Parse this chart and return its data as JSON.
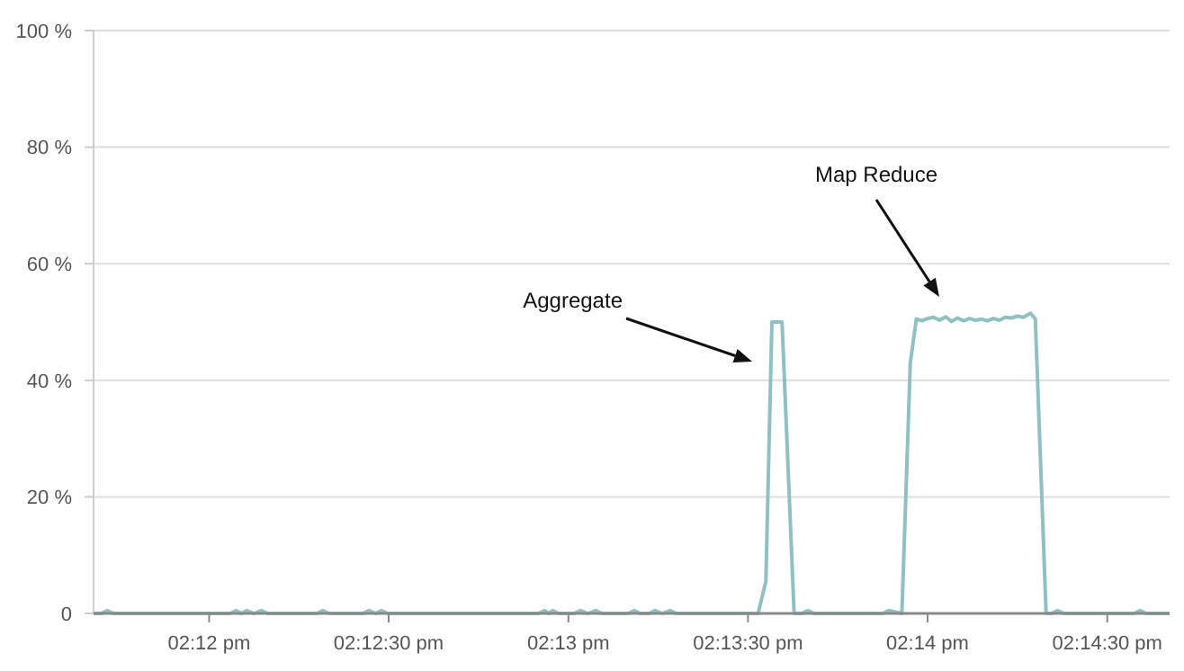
{
  "chart_data": {
    "type": "line",
    "x": [
      14.19464,
      14.195,
      14.19528,
      14.19556,
      14.20097,
      14.20125,
      14.2015,
      14.20175,
      14.20208,
      14.20242,
      14.20272,
      14.205,
      14.20528,
      14.20556,
      14.20714,
      14.20742,
      14.20772,
      14.208,
      14.20828,
      14.21528,
      14.21556,
      14.21575,
      14.21594,
      14.21622,
      14.21694,
      14.21722,
      14.21758,
      14.21794,
      14.21822,
      14.21944,
      14.21972,
      14.22,
      14.22042,
      14.22069,
      14.22103,
      14.22139,
      14.22167,
      14.22547,
      14.22583,
      14.22611,
      14.22658,
      14.22714,
      14.2275,
      14.22778,
      14.22806,
      14.23125,
      14.23153,
      14.23214,
      14.23253,
      14.23281,
      14.23306,
      14.23333,
      14.23361,
      14.23389,
      14.23417,
      14.23444,
      14.23472,
      14.235,
      14.23528,
      14.23556,
      14.23583,
      14.23611,
      14.23639,
      14.23667,
      14.23694,
      14.23722,
      14.2375,
      14.23778,
      14.23811,
      14.23833,
      14.23883,
      14.23908,
      14.23936,
      14.23964,
      14.24292,
      14.24319,
      14.24347,
      14.24456
    ],
    "series": [
      {
        "color": "#8fc1c2",
        "values": [
          0,
          0,
          0.5,
          0,
          0,
          0.5,
          0,
          0.5,
          0,
          0.5,
          0,
          0,
          0.5,
          0,
          0,
          0.5,
          0,
          0.5,
          0,
          0,
          0.5,
          0,
          0.5,
          0,
          0,
          0.5,
          0,
          0.5,
          0,
          0,
          0.5,
          0,
          0,
          0.5,
          0,
          0.5,
          0,
          0,
          5.5,
          50,
          50,
          0,
          0,
          0.5,
          0,
          0,
          0.5,
          0,
          43,
          50.5,
          50.2,
          50.6,
          50.8,
          50.3,
          50.9,
          50.1,
          50.7,
          50.2,
          50.6,
          50.3,
          50.5,
          50.2,
          50.6,
          50.3,
          50.8,
          50.7,
          51,
          50.8,
          51.5,
          50.5,
          0,
          0,
          0.5,
          0,
          0,
          0.5,
          0,
          0
        ]
      }
    ],
    "xlim": [
      14.19464,
      14.24456
    ],
    "xticks": [
      {
        "value": 14.2,
        "label": "02:12 pm"
      },
      {
        "value": 14.20833,
        "label": "02:12:30 pm"
      },
      {
        "value": 14.21667,
        "label": "02:13 pm"
      },
      {
        "value": 14.225,
        "label": "02:13:30 pm"
      },
      {
        "value": 14.23333,
        "label": "02:14 pm"
      },
      {
        "value": 14.24167,
        "label": "02:14:30 pm"
      }
    ],
    "ylim": [
      0,
      100
    ],
    "yticks": [
      0,
      {
        "value": 20,
        "label": "20 %"
      },
      {
        "value": 40,
        "label": "40 %"
      },
      {
        "value": 60,
        "label": "60 %"
      },
      {
        "value": 80,
        "label": "80 %"
      },
      {
        "value": 100,
        "label": "100 %"
      }
    ],
    "grid": "y",
    "legend": false,
    "marker": "none",
    "line_style": "solid",
    "annotations": [
      "Aggregate",
      "Map Reduce"
    ]
  }
}
